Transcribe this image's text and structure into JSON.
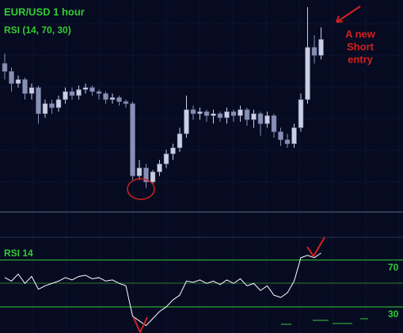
{
  "chart_data": [
    {
      "type": "candlestick",
      "title": "EUR/USD 1 hour",
      "subtitle": "RSI (14, 70, 30)",
      "annotation": [
        "A new",
        "Short",
        "entry"
      ],
      "open": [
        70,
        66,
        60,
        62,
        55,
        58,
        45,
        50,
        48,
        52,
        56,
        54,
        57,
        58,
        56,
        55,
        52,
        53,
        51,
        50,
        14,
        18,
        11,
        16,
        20,
        25,
        28,
        35,
        47,
        45,
        46,
        44,
        45,
        43,
        46,
        44,
        47,
        42,
        45,
        40,
        44,
        36,
        32,
        30,
        38,
        52,
        78,
        74
      ],
      "high": [
        75,
        68,
        64,
        63,
        60,
        59,
        52,
        52,
        54,
        58,
        58,
        59,
        60,
        59,
        57,
        56,
        55,
        54,
        52,
        51,
        22,
        20,
        17,
        22,
        27,
        30,
        38,
        54,
        49,
        48,
        47,
        47,
        46,
        48,
        47,
        49,
        48,
        47,
        46,
        46,
        45,
        38,
        35,
        40,
        55,
        98,
        84,
        88
      ],
      "low": [
        62,
        56,
        58,
        52,
        52,
        40,
        43,
        45,
        46,
        50,
        52,
        52,
        55,
        54,
        52,
        50,
        50,
        49,
        48,
        12,
        12,
        8,
        10,
        14,
        18,
        22,
        26,
        33,
        42,
        42,
        41,
        40,
        41,
        40,
        41,
        41,
        39,
        38,
        34,
        38,
        33,
        29,
        28,
        28,
        36,
        50,
        70,
        72
      ],
      "close": [
        66,
        60,
        62,
        55,
        58,
        45,
        50,
        48,
        52,
        56,
        54,
        57,
        58,
        56,
        55,
        52,
        53,
        51,
        50,
        14,
        18,
        11,
        16,
        20,
        25,
        28,
        35,
        47,
        45,
        46,
        44,
        45,
        43,
        46,
        44,
        47,
        42,
        45,
        40,
        44,
        36,
        32,
        30,
        38,
        52,
        78,
        74,
        82
      ],
      "up_color": "#c9cee2",
      "down_color": "#8790b4",
      "ylim": [
        0,
        100
      ]
    },
    {
      "type": "line",
      "title": "RSI 14",
      "values": [
        55,
        52,
        58,
        50,
        56,
        45,
        48,
        50,
        52,
        55,
        53,
        56,
        57,
        54,
        55,
        52,
        53,
        50,
        48,
        22,
        18,
        14,
        20,
        26,
        30,
        36,
        40,
        52,
        51,
        53,
        50,
        52,
        49,
        53,
        50,
        54,
        48,
        50,
        44,
        48,
        40,
        38,
        42,
        52,
        72,
        74,
        72,
        76
      ],
      "color": "#ffffff",
      "levels": [
        70,
        30
      ],
      "level_color": "#33cc33",
      "ylim": [
        8,
        82
      ]
    }
  ]
}
